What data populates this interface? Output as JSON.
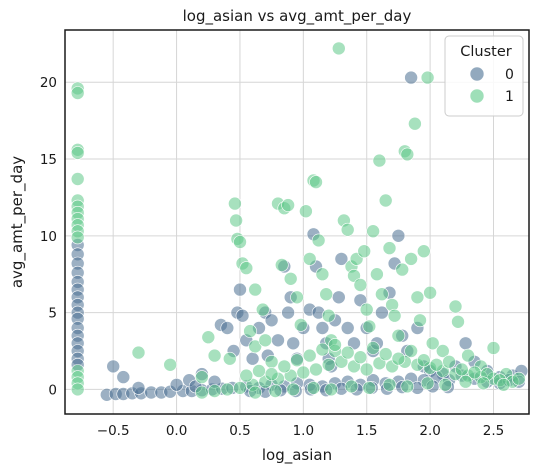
{
  "chart_data": {
    "type": "scatter",
    "title": "log_asian vs avg_amt_per_day",
    "xlabel": "log_asian",
    "ylabel": "avg_amt_per_day",
    "xlim": [
      -0.88,
      2.78
    ],
    "ylim": [
      -1.6,
      23.4
    ],
    "xticks": [
      -0.5,
      0.0,
      0.5,
      1.0,
      1.5,
      2.0,
      2.5
    ],
    "xtick_labels": [
      "−0.5",
      "0.0",
      "0.5",
      "1.0",
      "1.5",
      "2.0",
      "2.5"
    ],
    "yticks": [
      0,
      5,
      10,
      15,
      20
    ],
    "ytick_labels": [
      "0",
      "5",
      "10",
      "15",
      "20"
    ],
    "grid": true,
    "legend": {
      "title": "Cluster",
      "position": "top-right",
      "entries": [
        {
          "label": "0",
          "color": "#4a6f92"
        },
        {
          "label": "1",
          "color": "#5ec988"
        }
      ]
    },
    "series": [
      {
        "name": "0",
        "color": "#4a6f92",
        "points": [
          [
            -0.78,
            9.4
          ],
          [
            -0.78,
            8.8
          ],
          [
            -0.78,
            8.2
          ],
          [
            -0.78,
            7.6
          ],
          [
            -0.78,
            7.0
          ],
          [
            -0.78,
            6.5
          ],
          [
            -0.78,
            6.0
          ],
          [
            -0.78,
            5.5
          ],
          [
            -0.78,
            5.0
          ],
          [
            -0.78,
            4.6
          ],
          [
            -0.78,
            4.0
          ],
          [
            -0.78,
            3.5
          ],
          [
            -0.78,
            3.0
          ],
          [
            -0.78,
            2.5
          ],
          [
            -0.78,
            2.0
          ],
          [
            -0.78,
            1.6
          ],
          [
            -0.55,
            -0.35
          ],
          [
            -0.48,
            -0.3
          ],
          [
            -0.42,
            -0.3
          ],
          [
            -0.35,
            -0.25
          ],
          [
            -0.28,
            -0.25
          ],
          [
            -0.2,
            -0.2
          ],
          [
            -0.12,
            -0.2
          ],
          [
            -0.05,
            -0.15
          ],
          [
            0.05,
            -0.1
          ],
          [
            0.12,
            -0.1
          ],
          [
            0.2,
            -0.05
          ],
          [
            0.28,
            0.0
          ],
          [
            0.36,
            0.05
          ],
          [
            0.44,
            0.1
          ],
          [
            -0.5,
            1.5
          ],
          [
            -0.42,
            0.8
          ],
          [
            -0.3,
            0.1
          ],
          [
            0.0,
            0.3
          ],
          [
            0.1,
            0.6
          ],
          [
            0.3,
            0.5
          ],
          [
            0.2,
            1.0
          ],
          [
            0.15,
            0.2
          ],
          [
            0.35,
            4.2
          ],
          [
            0.4,
            4.0
          ],
          [
            0.48,
            5.0
          ],
          [
            0.5,
            6.5
          ],
          [
            0.52,
            4.8
          ],
          [
            0.55,
            3.2
          ],
          [
            0.6,
            2.0
          ],
          [
            0.45,
            2.5
          ],
          [
            0.7,
            5.0
          ],
          [
            0.75,
            4.5
          ],
          [
            0.8,
            3.2
          ],
          [
            0.65,
            4.0
          ],
          [
            0.72,
            2.2
          ],
          [
            0.85,
            8.0
          ],
          [
            0.88,
            5.0
          ],
          [
            0.9,
            6.0
          ],
          [
            0.92,
            3.0
          ],
          [
            0.95,
            2.0
          ],
          [
            1.0,
            4.0
          ],
          [
            1.05,
            5.2
          ],
          [
            1.08,
            10.1
          ],
          [
            1.1,
            8.0
          ],
          [
            1.12,
            5.0
          ],
          [
            1.15,
            4.0
          ],
          [
            1.18,
            3.0
          ],
          [
            1.2,
            2.0
          ],
          [
            1.22,
            1.5
          ],
          [
            1.25,
            4.5
          ],
          [
            1.28,
            6.0
          ],
          [
            1.3,
            8.5
          ],
          [
            1.35,
            4.0
          ],
          [
            1.4,
            3.0
          ],
          [
            1.45,
            5.8
          ],
          [
            1.5,
            4.0
          ],
          [
            1.55,
            2.5
          ],
          [
            1.58,
            3.0
          ],
          [
            1.62,
            5.0
          ],
          [
            1.68,
            6.3
          ],
          [
            1.72,
            8.2
          ],
          [
            1.75,
            10.0
          ],
          [
            1.78,
            3.5
          ],
          [
            1.82,
            2.5
          ],
          [
            1.85,
            20.3
          ],
          [
            1.9,
            4.0
          ],
          [
            1.95,
            1.5
          ],
          [
            2.0,
            1.2
          ],
          [
            2.1,
            1.0
          ],
          [
            2.2,
            1.5
          ],
          [
            2.28,
            3.0
          ],
          [
            2.35,
            1.8
          ],
          [
            2.45,
            1.2
          ],
          [
            2.55,
            0.8
          ],
          [
            2.65,
            0.9
          ],
          [
            2.72,
            1.2
          ],
          [
            0.55,
            0.2
          ],
          [
            0.65,
            0.1
          ],
          [
            0.75,
            0.3
          ],
          [
            0.85,
            0.2
          ],
          [
            0.95,
            0.4
          ],
          [
            1.05,
            0.3
          ],
          [
            1.15,
            0.2
          ],
          [
            1.25,
            0.4
          ],
          [
            1.35,
            0.5
          ],
          [
            1.45,
            0.3
          ],
          [
            1.55,
            0.6
          ],
          [
            1.65,
            0.4
          ],
          [
            1.75,
            0.5
          ],
          [
            1.85,
            0.7
          ],
          [
            1.95,
            0.6
          ],
          [
            2.05,
            0.8
          ],
          [
            2.15,
            0.6
          ],
          [
            2.25,
            0.9
          ],
          [
            2.35,
            0.7
          ],
          [
            2.45,
            0.5
          ],
          [
            2.55,
            0.4
          ],
          [
            2.62,
            0.6
          ],
          [
            2.7,
            0.5
          ],
          [
            0.58,
            -0.1
          ],
          [
            0.7,
            -0.15
          ],
          [
            0.82,
            -0.05
          ],
          [
            0.94,
            -0.1
          ],
          [
            1.06,
            0.0
          ],
          [
            1.18,
            -0.05
          ],
          [
            1.3,
            0.05
          ],
          [
            1.42,
            0.0
          ],
          [
            1.54,
            0.1
          ],
          [
            1.66,
            0.05
          ],
          [
            1.78,
            0.15
          ],
          [
            1.9,
            0.1
          ],
          [
            2.02,
            0.2
          ],
          [
            2.14,
            0.15
          ]
        ]
      },
      {
        "name": "1",
        "color": "#5ec988",
        "points": [
          [
            -0.78,
            19.6
          ],
          [
            -0.78,
            19.3
          ],
          [
            -0.78,
            15.6
          ],
          [
            -0.78,
            15.4
          ],
          [
            -0.78,
            13.7
          ],
          [
            -0.78,
            12.3
          ],
          [
            -0.78,
            11.9
          ],
          [
            -0.78,
            11.5
          ],
          [
            -0.78,
            11.1
          ],
          [
            -0.78,
            10.7
          ],
          [
            -0.78,
            10.3
          ],
          [
            -0.78,
            9.9
          ],
          [
            -0.78,
            1.2
          ],
          [
            -0.78,
            0.8
          ],
          [
            -0.78,
            0.4
          ],
          [
            -0.78,
            0.0
          ],
          [
            -0.3,
            2.4
          ],
          [
            -0.05,
            1.6
          ],
          [
            0.2,
            0.8
          ],
          [
            0.3,
            2.2
          ],
          [
            0.25,
            3.4
          ],
          [
            0.42,
            2.0
          ],
          [
            0.46,
            12.1
          ],
          [
            0.47,
            11.0
          ],
          [
            0.48,
            9.8
          ],
          [
            0.5,
            9.6
          ],
          [
            0.52,
            8.2
          ],
          [
            0.55,
            7.9
          ],
          [
            0.62,
            6.5
          ],
          [
            0.68,
            5.2
          ],
          [
            0.58,
            3.8
          ],
          [
            0.62,
            2.8
          ],
          [
            0.7,
            3.2
          ],
          [
            0.75,
            1.8
          ],
          [
            0.8,
            12.1
          ],
          [
            0.85,
            11.8
          ],
          [
            0.88,
            12.0
          ],
          [
            0.83,
            8.1
          ],
          [
            0.9,
            7.2
          ],
          [
            0.95,
            6.0
          ],
          [
            0.98,
            4.2
          ],
          [
            1.02,
            11.6
          ],
          [
            1.05,
            8.5
          ],
          [
            1.08,
            13.6
          ],
          [
            1.1,
            13.5
          ],
          [
            1.12,
            9.7
          ],
          [
            1.15,
            7.5
          ],
          [
            1.18,
            6.2
          ],
          [
            1.2,
            4.8
          ],
          [
            1.22,
            3.2
          ],
          [
            1.25,
            2.5
          ],
          [
            1.28,
            22.2
          ],
          [
            1.32,
            11.0
          ],
          [
            1.35,
            10.4
          ],
          [
            1.38,
            8.0
          ],
          [
            1.4,
            7.4
          ],
          [
            1.42,
            8.5
          ],
          [
            1.45,
            6.8
          ],
          [
            1.48,
            9.0
          ],
          [
            1.5,
            5.2
          ],
          [
            1.52,
            4.1
          ],
          [
            1.55,
            10.3
          ],
          [
            1.58,
            7.5
          ],
          [
            1.6,
            14.9
          ],
          [
            1.62,
            6.2
          ],
          [
            1.65,
            12.3
          ],
          [
            1.68,
            9.2
          ],
          [
            1.7,
            5.5
          ],
          [
            1.72,
            4.8
          ],
          [
            1.75,
            3.5
          ],
          [
            1.78,
            7.8
          ],
          [
            1.8,
            15.5
          ],
          [
            1.82,
            15.3
          ],
          [
            1.85,
            8.5
          ],
          [
            1.88,
            17.3
          ],
          [
            1.9,
            6.0
          ],
          [
            1.92,
            4.5
          ],
          [
            1.95,
            9.0
          ],
          [
            1.98,
            20.3
          ],
          [
            2.0,
            6.3
          ],
          [
            2.02,
            3.0
          ],
          [
            2.1,
            2.5
          ],
          [
            2.2,
            5.4
          ],
          [
            2.22,
            4.4
          ],
          [
            2.3,
            2.2
          ],
          [
            2.4,
            1.5
          ],
          [
            2.5,
            2.7
          ],
          [
            2.6,
            1.0
          ],
          [
            0.2,
            -0.2
          ],
          [
            0.3,
            -0.1
          ],
          [
            0.4,
            0.0
          ],
          [
            0.5,
            0.1
          ],
          [
            0.6,
            0.3
          ],
          [
            0.7,
            0.5
          ],
          [
            0.8,
            0.7
          ],
          [
            0.9,
            0.9
          ],
          [
            1.0,
            1.1
          ],
          [
            1.1,
            1.3
          ],
          [
            1.2,
            1.6
          ],
          [
            1.3,
            1.8
          ],
          [
            1.4,
            1.5
          ],
          [
            1.5,
            1.3
          ],
          [
            1.6,
            1.7
          ],
          [
            1.7,
            1.5
          ],
          [
            1.8,
            1.8
          ],
          [
            1.9,
            1.6
          ],
          [
            2.0,
            1.4
          ],
          [
            2.1,
            1.2
          ],
          [
            2.2,
            1.0
          ],
          [
            2.3,
            0.9
          ],
          [
            2.4,
            0.8
          ],
          [
            2.5,
            0.7
          ],
          [
            0.55,
            0.9
          ],
          [
            0.65,
            1.2
          ],
          [
            0.75,
            1.0
          ],
          [
            0.85,
            1.5
          ],
          [
            0.95,
            1.9
          ],
          [
            1.05,
            2.2
          ],
          [
            1.15,
            2.6
          ],
          [
            1.25,
            2.9
          ],
          [
            1.35,
            2.4
          ],
          [
            1.45,
            2.1
          ],
          [
            1.55,
            2.7
          ],
          [
            1.65,
            2.3
          ],
          [
            1.75,
            2.0
          ],
          [
            1.85,
            2.5
          ],
          [
            1.95,
            1.9
          ],
          [
            2.05,
            1.6
          ],
          [
            2.15,
            1.8
          ],
          [
            2.25,
            1.3
          ],
          [
            2.35,
            1.1
          ],
          [
            2.45,
            1.0
          ],
          [
            2.55,
            0.6
          ],
          [
            2.65,
            0.5
          ],
          [
            2.7,
            0.7
          ],
          [
            0.62,
            -0.2
          ],
          [
            0.78,
            -0.1
          ],
          [
            0.92,
            0.0
          ],
          [
            1.08,
            0.1
          ],
          [
            1.22,
            0.0
          ],
          [
            1.38,
            0.2
          ],
          [
            1.52,
            0.1
          ],
          [
            1.68,
            0.3
          ],
          [
            1.82,
            0.2
          ],
          [
            1.98,
            0.4
          ],
          [
            2.12,
            0.3
          ],
          [
            2.28,
            0.5
          ],
          [
            2.42,
            0.4
          ],
          [
            2.58,
            0.3
          ]
        ]
      }
    ]
  }
}
